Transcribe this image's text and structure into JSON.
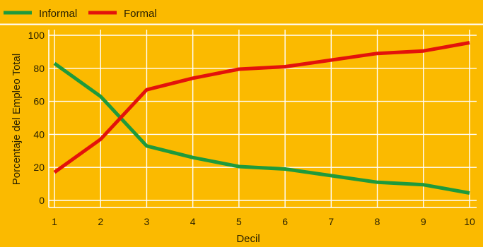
{
  "chart_data": {
    "type": "line",
    "xlabel": "Decil",
    "ylabel": "Porcentaje del Empleo Total",
    "x": [
      1,
      2,
      3,
      4,
      5,
      6,
      7,
      8,
      9,
      10
    ],
    "xlim": [
      1,
      10
    ],
    "ylim": [
      0,
      100
    ],
    "yticks": [
      0,
      20,
      40,
      60,
      80,
      100
    ],
    "grid": true,
    "legend_position": "top-left",
    "series": [
      {
        "name": "Informal",
        "color": "#1E9A3C",
        "values": [
          83,
          63,
          33,
          26,
          20.5,
          19,
          15,
          11,
          9.5,
          4.5
        ]
      },
      {
        "name": "Formal",
        "color": "#E3120B",
        "values": [
          17,
          37,
          67,
          74,
          79.5,
          81,
          85,
          89,
          90.5,
          95.5
        ]
      }
    ]
  }
}
